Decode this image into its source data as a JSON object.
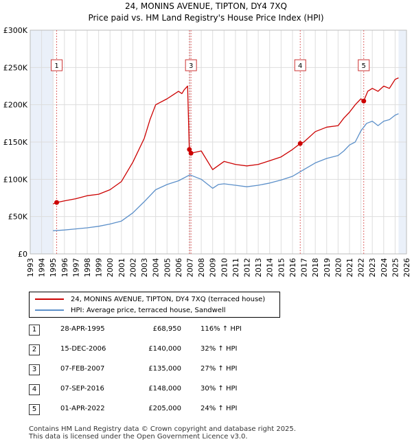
{
  "title_line1": "24, MONINS AVENUE, TIPTON, DY4 7XQ",
  "title_line2": "Price paid vs. HM Land Registry's House Price Index (HPI)",
  "colors": {
    "property": "#cc0000",
    "hpi": "#5b8fc9",
    "marker_line": "#dd6666",
    "band": "#dce6f5",
    "grid": "#dddddd"
  },
  "chart_data": {
    "type": "line",
    "xlim": [
      1993,
      2026
    ],
    "ylim": [
      0,
      300000
    ],
    "y_ticks": [
      {
        "value": 0,
        "label": "£0"
      },
      {
        "value": 50000,
        "label": "£50K"
      },
      {
        "value": 100000,
        "label": "£100K"
      },
      {
        "value": 150000,
        "label": "£150K"
      },
      {
        "value": 200000,
        "label": "£200K"
      },
      {
        "value": 250000,
        "label": "£250K"
      },
      {
        "value": 300000,
        "label": "£300K"
      }
    ],
    "x_ticks": [
      "1993",
      "1994",
      "1995",
      "1996",
      "1997",
      "1998",
      "1999",
      "2000",
      "2001",
      "2002",
      "2003",
      "2004",
      "2005",
      "2006",
      "2007",
      "2008",
      "2009",
      "2010",
      "2011",
      "2012",
      "2013",
      "2014",
      "2015",
      "2016",
      "2017",
      "2018",
      "2019",
      "2020",
      "2021",
      "2022",
      "2023",
      "2024",
      "2025",
      "2026"
    ],
    "shaded_ranges": [
      [
        1993,
        1995.0
      ],
      [
        2025.3,
        2026
      ]
    ],
    "series": [
      {
        "name": "24, MONINS AVENUE, TIPTON, DY4 7XQ (terraced house)",
        "x": [
          1995.0,
          1995.32,
          1996.0,
          1997.0,
          1998.0,
          1999.0,
          2000.0,
          2001.0,
          2002.0,
          2003.0,
          2003.5,
          2004.0,
          2005.0,
          2006.0,
          2006.3,
          2006.5,
          2006.8,
          2006.95,
          2007.1,
          2008.0,
          2009.0,
          2010.0,
          2011.0,
          2012.0,
          2013.0,
          2014.0,
          2015.0,
          2016.0,
          2016.68,
          2017.0,
          2018.0,
          2019.0,
          2020.0,
          2020.5,
          2021.0,
          2021.5,
          2022.0,
          2022.25,
          2022.6,
          2023.0,
          2023.5,
          2024.0,
          2024.5,
          2025.0,
          2025.3
        ],
        "values": [
          67000,
          68950,
          71000,
          74000,
          78000,
          80000,
          86000,
          97000,
          123000,
          155000,
          180000,
          200000,
          208000,
          218000,
          215000,
          220000,
          225000,
          140000,
          135000,
          138000,
          113000,
          124000,
          120000,
          118000,
          120000,
          125000,
          130000,
          140000,
          148000,
          150000,
          164000,
          170000,
          172000,
          182000,
          190000,
          200000,
          208000,
          205000,
          218000,
          222000,
          218000,
          225000,
          222000,
          234000,
          236000
        ]
      },
      {
        "name": "HPI: Average price, terraced house, Sandwell",
        "x": [
          1995.0,
          1996.0,
          1997.0,
          1998.0,
          1999.0,
          2000.0,
          2001.0,
          2002.0,
          2003.0,
          2004.0,
          2005.0,
          2006.0,
          2007.0,
          2008.0,
          2009.0,
          2009.5,
          2010.0,
          2011.0,
          2012.0,
          2013.0,
          2014.0,
          2015.0,
          2016.0,
          2017.0,
          2018.0,
          2019.0,
          2020.0,
          2020.5,
          2021.0,
          2021.5,
          2022.0,
          2022.5,
          2023.0,
          2023.5,
          2024.0,
          2024.5,
          2025.0,
          2025.3
        ],
        "values": [
          31000,
          32000,
          33500,
          35000,
          37000,
          40000,
          44000,
          55000,
          70000,
          86000,
          93000,
          98000,
          106000,
          100000,
          88000,
          93000,
          94000,
          92000,
          90000,
          92000,
          95000,
          99000,
          104000,
          113000,
          122000,
          128000,
          132000,
          138000,
          146000,
          150000,
          165000,
          175000,
          178000,
          172000,
          178000,
          180000,
          186000,
          188000
        ]
      }
    ],
    "markers": [
      {
        "label": "1",
        "x": 1995.32,
        "y": 68950
      },
      {
        "label": "2",
        "x": 2006.96,
        "y": 140000
      },
      {
        "label": "3",
        "x": 2007.1,
        "y": 135000
      },
      {
        "label": "4",
        "x": 2016.68,
        "y": 148000
      },
      {
        "label": "5",
        "x": 2022.25,
        "y": 205000
      }
    ],
    "marker_boxes": [
      {
        "label": "1",
        "x": 1995.32,
        "y": 253000
      },
      {
        "label": "3",
        "x": 2007.1,
        "y": 253000
      },
      {
        "label": "4",
        "x": 2016.68,
        "y": 253000
      },
      {
        "label": "5",
        "x": 2022.25,
        "y": 253000
      }
    ]
  },
  "legend": {
    "property_label": "24, MONINS AVENUE, TIPTON, DY4 7XQ (terraced house)",
    "hpi_label": "HPI: Average price, terraced house, Sandwell"
  },
  "transactions": [
    {
      "num": "1",
      "date": "28-APR-1995",
      "price": "£68,950",
      "hpi": "116% ↑ HPI"
    },
    {
      "num": "2",
      "date": "15-DEC-2006",
      "price": "£140,000",
      "hpi": "32% ↑ HPI"
    },
    {
      "num": "3",
      "date": "07-FEB-2007",
      "price": "£135,000",
      "hpi": "27% ↑ HPI"
    },
    {
      "num": "4",
      "date": "07-SEP-2016",
      "price": "£148,000",
      "hpi": "30% ↑ HPI"
    },
    {
      "num": "5",
      "date": "01-APR-2022",
      "price": "£205,000",
      "hpi": "24% ↑ HPI"
    }
  ],
  "footer_line1": "Contains HM Land Registry data © Crown copyright and database right 2025.",
  "footer_line2": "This data is licensed under the Open Government Licence v3.0."
}
